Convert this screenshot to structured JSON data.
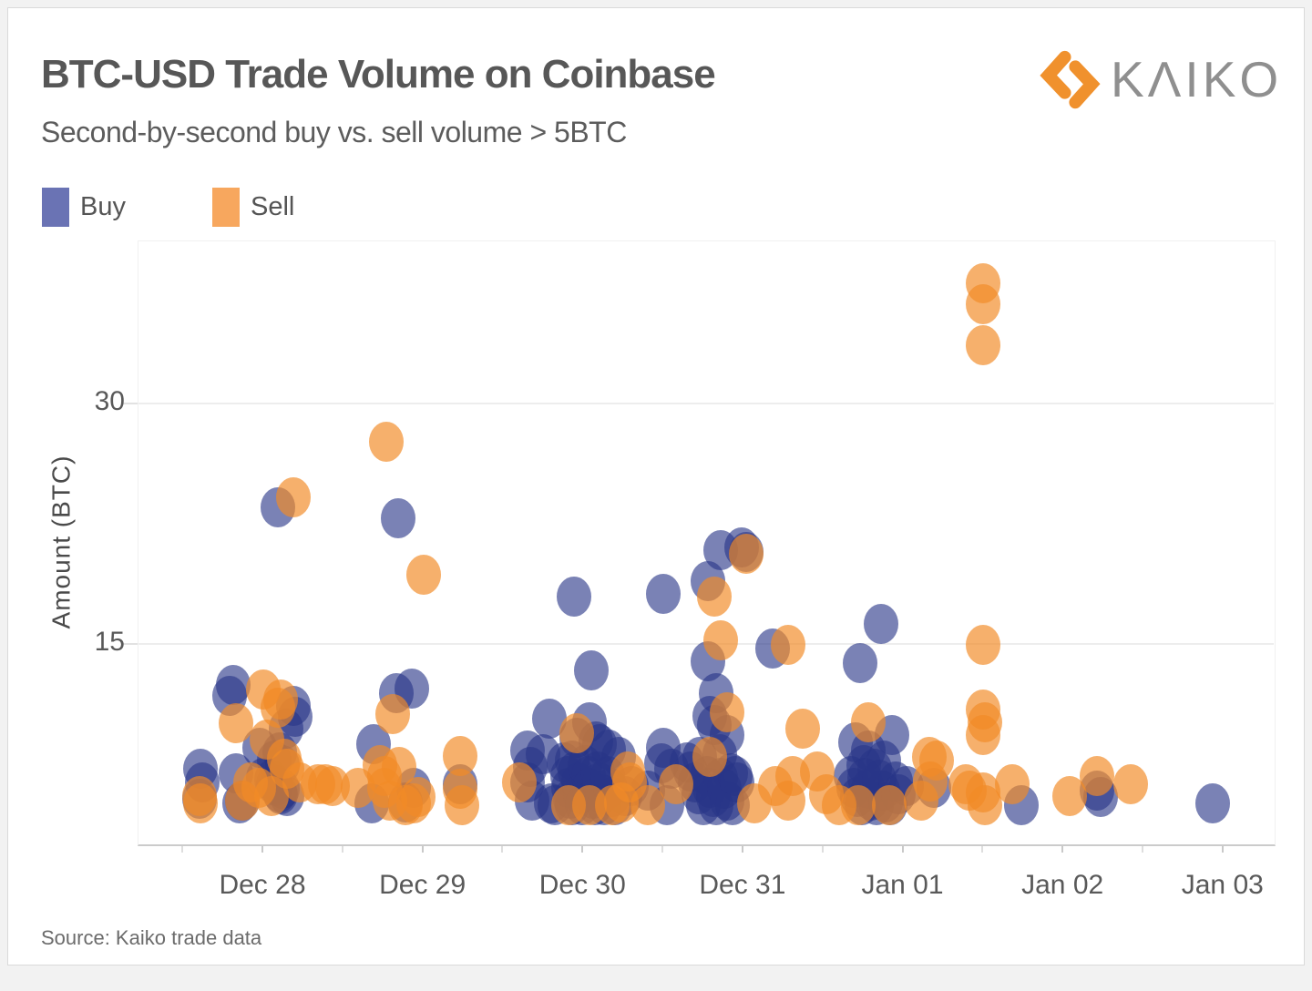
{
  "header": {
    "title": "BTC-USD Trade Volume on Coinbase",
    "subtitle": "Second-by-second buy vs. sell volume > 5BTC",
    "logo_text": "KΛIKO",
    "logo_mark_color": "#F0912D"
  },
  "legend": {
    "buy_label": "Buy",
    "sell_label": "Sell",
    "buy_color": "#6A73B4",
    "sell_color": "#F7A75E"
  },
  "footer": {
    "source": "Source: Kaiko trade data"
  },
  "chart_data": {
    "type": "scatter",
    "title": "BTC-USD Trade Volume on Coinbase",
    "subtitle": "Second-by-second buy vs. sell volume > 5BTC",
    "ylabel": "Amount (BTC)",
    "grid": "horizontal-only",
    "legend_position": "top-left",
    "x_axis": {
      "tick_labels": [
        "Dec 28",
        "Dec 29",
        "Dec 30",
        "Dec 31",
        "Jan 01",
        "Jan 02",
        "Jan 03"
      ],
      "tick_day_offsets": [
        0,
        1,
        2,
        3,
        4,
        5,
        6
      ],
      "minor_tick_day_offsets": [
        -0.5,
        0.5,
        1.5,
        2.5,
        3.5,
        4.5,
        5.5
      ],
      "day_offset_reference": "Dec 28",
      "xlim_days": [
        -0.78,
        6.32
      ]
    },
    "y_axis": {
      "ticks": [
        15,
        30
      ],
      "ylim": [
        2.56,
        40.2
      ]
    },
    "series": [
      {
        "name": "Buy",
        "color": "rgba(40,53,135,0.62)",
        "points": [
          [
            -0.39,
            7.3
          ],
          [
            -0.38,
            6.4
          ],
          [
            -0.4,
            5.4
          ],
          [
            -0.21,
            11.8
          ],
          [
            -0.19,
            12.5
          ],
          [
            -0.17,
            7.0
          ],
          [
            -0.15,
            5.1
          ],
          [
            -0.13,
            5.3
          ],
          [
            -0.02,
            8.6
          ],
          [
            0.0,
            6.7
          ],
          [
            0.05,
            6.6
          ],
          [
            0.06,
            6.3
          ],
          [
            0.07,
            7.8
          ],
          [
            0.08,
            6.2
          ],
          [
            0.09,
            23.6
          ],
          [
            0.1,
            8.3
          ],
          [
            0.1,
            5.8
          ],
          [
            0.11,
            5.7
          ],
          [
            0.12,
            7.5
          ],
          [
            0.12,
            6.0
          ],
          [
            0.14,
            9.8
          ],
          [
            0.15,
            5.6
          ],
          [
            0.19,
            11.2
          ],
          [
            0.2,
            10.5
          ],
          [
            0.68,
            5.1
          ],
          [
            0.69,
            8.8
          ],
          [
            0.83,
            12.0
          ],
          [
            0.84,
            22.9
          ],
          [
            0.89,
            5.2
          ],
          [
            0.93,
            12.3
          ],
          [
            0.94,
            6.1
          ],
          [
            1.23,
            6.3
          ],
          [
            1.65,
            8.4
          ],
          [
            1.65,
            6.4
          ],
          [
            1.67,
            7.4
          ],
          [
            1.68,
            5.3
          ],
          [
            1.75,
            8.2
          ],
          [
            1.79,
            10.4
          ],
          [
            1.8,
            5.1
          ],
          [
            1.82,
            5.0
          ],
          [
            1.93,
            7.8
          ],
          [
            1.94,
            18.0
          ],
          [
            2.04,
            10.2
          ],
          [
            2.05,
            13.4
          ],
          [
            1.88,
            7.7
          ],
          [
            1.9,
            6.8
          ],
          [
            1.91,
            6.1
          ],
          [
            1.92,
            5.4
          ],
          [
            1.93,
            5.0
          ],
          [
            1.95,
            7.1
          ],
          [
            1.96,
            9.2
          ],
          [
            1.97,
            6.4
          ],
          [
            1.98,
            5.7
          ],
          [
            1.99,
            5.0
          ],
          [
            2.01,
            7.5
          ],
          [
            2.03,
            6.8
          ],
          [
            2.04,
            6.1
          ],
          [
            2.06,
            5.4
          ],
          [
            2.07,
            5.0
          ],
          [
            2.08,
            9.0
          ],
          [
            2.09,
            7.1
          ],
          [
            2.1,
            8.8
          ],
          [
            2.1,
            6.4
          ],
          [
            2.12,
            5.7
          ],
          [
            2.13,
            5.0
          ],
          [
            2.15,
            6.8
          ],
          [
            2.16,
            8.5
          ],
          [
            2.17,
            6.1
          ],
          [
            2.18,
            5.5
          ],
          [
            2.2,
            5.0
          ],
          [
            2.22,
            8.0
          ],
          [
            2.26,
            5.6
          ],
          [
            2.3,
            6.2
          ],
          [
            2.4,
            5.9
          ],
          [
            2.49,
            7.6
          ],
          [
            2.5,
            18.2
          ],
          [
            2.5,
            8.6
          ],
          [
            2.52,
            5.0
          ],
          [
            2.55,
            7.3
          ],
          [
            2.65,
            7.7
          ],
          [
            2.67,
            7.1
          ],
          [
            2.7,
            6.4
          ],
          [
            2.72,
            5.7
          ],
          [
            2.73,
            8.0
          ],
          [
            2.75,
            5.0
          ],
          [
            2.77,
            6.8
          ],
          [
            2.79,
            6.1
          ],
          [
            2.79,
            10.6
          ],
          [
            2.81,
            5.5
          ],
          [
            2.82,
            10.0
          ],
          [
            2.83,
            12.0
          ],
          [
            2.83,
            5.0
          ],
          [
            2.85,
            8.2
          ],
          [
            2.86,
            20.9
          ],
          [
            2.86,
            6.7
          ],
          [
            2.88,
            6.0
          ],
          [
            2.9,
            9.4
          ],
          [
            2.9,
            5.3
          ],
          [
            2.92,
            7.0
          ],
          [
            2.93,
            5.0
          ],
          [
            2.95,
            6.8
          ],
          [
            2.96,
            6.4
          ],
          [
            2.99,
            21.1
          ],
          [
            3.02,
            20.8
          ],
          [
            2.78,
            19.0
          ],
          [
            2.78,
            14.0
          ],
          [
            3.18,
            14.8
          ],
          [
            3.67,
            6.8
          ],
          [
            3.69,
            6.1
          ],
          [
            3.7,
            8.9
          ],
          [
            3.71,
            5.5
          ],
          [
            3.73,
            13.9
          ],
          [
            3.74,
            5.0
          ],
          [
            3.75,
            7.5
          ],
          [
            3.76,
            6.7
          ],
          [
            3.78,
            8.4
          ],
          [
            3.78,
            6.0
          ],
          [
            3.8,
            5.3
          ],
          [
            3.82,
            7.3
          ],
          [
            3.83,
            5.0
          ],
          [
            3.85,
            6.6
          ],
          [
            3.86,
            16.3
          ],
          [
            3.87,
            5.9
          ],
          [
            3.88,
            7.8
          ],
          [
            3.89,
            5.2
          ],
          [
            3.92,
            5.0
          ],
          [
            3.93,
            9.4
          ],
          [
            3.95,
            6.5
          ],
          [
            3.97,
            5.7
          ],
          [
            4.02,
            6.2
          ],
          [
            4.19,
            6.1
          ],
          [
            4.74,
            5.0
          ],
          [
            5.21,
            5.9
          ],
          [
            5.23,
            5.5
          ],
          [
            5.93,
            5.1
          ]
        ]
      },
      {
        "name": "Sell",
        "color": "rgba(242,139,39,0.68)",
        "points": [
          [
            -0.4,
            5.6
          ],
          [
            -0.39,
            5.1
          ],
          [
            -0.17,
            10.1
          ],
          [
            -0.13,
            5.3
          ],
          [
            -0.08,
            6.4
          ],
          [
            -0.03,
            6.1
          ],
          [
            0.0,
            12.2
          ],
          [
            0.02,
            9.1
          ],
          [
            0.05,
            5.6
          ],
          [
            0.09,
            11.1
          ],
          [
            0.11,
            11.6
          ],
          [
            0.13,
            7.9
          ],
          [
            0.15,
            7.3
          ],
          [
            0.19,
            24.2
          ],
          [
            0.23,
            6.4
          ],
          [
            0.34,
            6.3
          ],
          [
            0.39,
            6.3
          ],
          [
            0.43,
            6.2
          ],
          [
            0.59,
            6.1
          ],
          [
            0.73,
            7.5
          ],
          [
            0.76,
            6.8
          ],
          [
            0.76,
            6.1
          ],
          [
            0.77,
            27.7
          ],
          [
            0.79,
            5.3
          ],
          [
            0.81,
            10.7
          ],
          [
            0.85,
            7.4
          ],
          [
            0.89,
            5.0
          ],
          [
            0.94,
            5.1
          ],
          [
            0.97,
            5.5
          ],
          [
            1.0,
            19.4
          ],
          [
            1.23,
            8.1
          ],
          [
            1.23,
            6.0
          ],
          [
            1.24,
            5.0
          ],
          [
            1.6,
            6.4
          ],
          [
            1.91,
            5.0
          ],
          [
            1.96,
            9.5
          ],
          [
            2.04,
            5.0
          ],
          [
            2.18,
            5.0
          ],
          [
            2.24,
            5.2
          ],
          [
            2.28,
            7.1
          ],
          [
            2.29,
            6.4
          ],
          [
            2.4,
            5.0
          ],
          [
            2.58,
            6.3
          ],
          [
            2.79,
            8.0
          ],
          [
            2.82,
            18.0
          ],
          [
            2.86,
            15.3
          ],
          [
            2.9,
            10.8
          ],
          [
            3.02,
            20.7
          ],
          [
            3.07,
            5.1
          ],
          [
            3.2,
            6.2
          ],
          [
            3.28,
            15.0
          ],
          [
            3.28,
            5.3
          ],
          [
            3.31,
            6.8
          ],
          [
            3.37,
            9.8
          ],
          [
            3.46,
            7.1
          ],
          [
            3.52,
            5.7
          ],
          [
            3.6,
            5.0
          ],
          [
            3.72,
            5.0
          ],
          [
            3.78,
            10.2
          ],
          [
            3.91,
            5.0
          ],
          [
            4.11,
            5.3
          ],
          [
            4.16,
            8.0
          ],
          [
            4.17,
            6.5
          ],
          [
            4.21,
            7.8
          ],
          [
            4.39,
            6.3
          ],
          [
            4.41,
            5.9
          ],
          [
            4.5,
            37.6
          ],
          [
            4.5,
            36.3
          ],
          [
            4.5,
            33.7
          ],
          [
            4.5,
            15.0
          ],
          [
            4.5,
            11.0
          ],
          [
            4.51,
            10.2
          ],
          [
            4.5,
            9.4
          ],
          [
            4.5,
            5.8
          ],
          [
            4.51,
            5.0
          ],
          [
            4.68,
            6.3
          ],
          [
            5.04,
            5.6
          ],
          [
            5.21,
            6.8
          ],
          [
            5.42,
            6.3
          ]
        ]
      }
    ]
  }
}
